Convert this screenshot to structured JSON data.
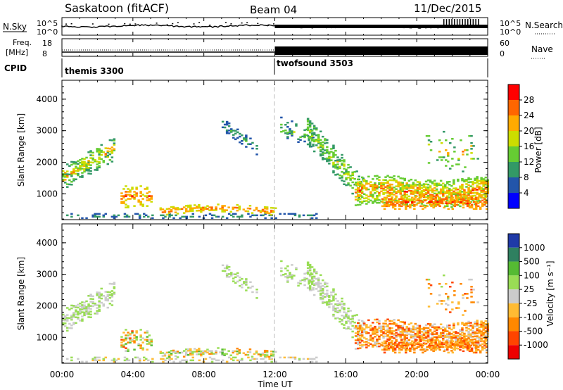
{
  "header": {
    "radar": "Saskatoon (fitACF)",
    "beam": "Beam 04",
    "date": "11/Dec/2015"
  },
  "strips": {
    "nsky_label": "N.Sky",
    "nsearch_label": "N.Search",
    "noise_ticks": [
      "10^5",
      "10^0"
    ],
    "freq_label_1": "Freq.",
    "freq_label_2": "[MHz]",
    "freq_ticks": [
      "18",
      "8"
    ],
    "nave_label": "Nave",
    "nave_ticks": [
      "60",
      "0"
    ],
    "cpid_label": "CPID",
    "cpid_segments": [
      {
        "name": "themis 3300",
        "start_hr": 0,
        "end_hr": 12
      },
      {
        "name": "twofsound 3503",
        "start_hr": 12,
        "end_hr": 24
      }
    ]
  },
  "chart_data": [
    {
      "type": "heatmap",
      "title": "",
      "xlabel": "",
      "ylabel": "Slant Range [km]",
      "xlim": [
        0,
        24
      ],
      "ylim": [
        180,
        4600
      ],
      "y_ticks": [
        1000,
        2000,
        3000,
        4000
      ],
      "colorbar_label": "Power [dB]",
      "colorbar_ticks": [
        "4",
        "8",
        "12",
        "16",
        "20",
        "24",
        "28"
      ],
      "colorbar_range": [
        0,
        30
      ],
      "colors": [
        "#0000ff",
        "#2255aa",
        "#339966",
        "#66cc33",
        "#ccdd00",
        "#ffaa00",
        "#ff6600",
        "#ff0000"
      ]
    },
    {
      "type": "heatmap",
      "title": "",
      "xlabel": "Time UT",
      "ylabel": "Slant Range [km]",
      "xlim": [
        0,
        24
      ],
      "ylim": [
        180,
        4600
      ],
      "x_ticks": [
        "00:00",
        "04:00",
        "08:00",
        "12:00",
        "16:00",
        "20:00",
        "00:00"
      ],
      "y_ticks": [
        1000,
        2000,
        3000,
        4000
      ],
      "colorbar_label": "Velocity [m s⁻¹]",
      "colorbar_ticks": [
        "1000",
        "500",
        "100",
        "25",
        "-25",
        "-100",
        "-500",
        "-1000"
      ],
      "colors": [
        "#1f3aa8",
        "#2f8060",
        "#55bb33",
        "#99dd55",
        "#cccccc",
        "#ffbb33",
        "#ff8800",
        "#ff4400",
        "#ee0000"
      ]
    }
  ]
}
